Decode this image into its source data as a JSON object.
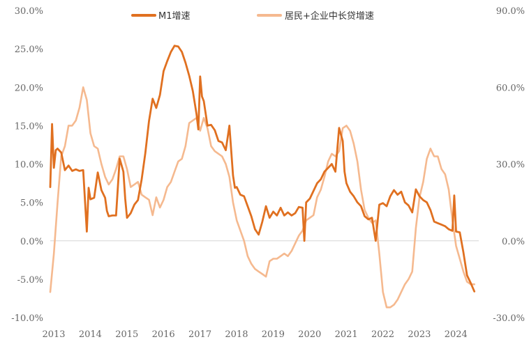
{
  "chart_data": {
    "type": "line",
    "title": "",
    "xlabel": "",
    "ylabel": "",
    "x_ticks": [
      "2013",
      "2014",
      "2015",
      "2016",
      "2017",
      "2018",
      "2019",
      "2020",
      "2021",
      "2022",
      "2023",
      "2024"
    ],
    "y_left": {
      "ticks": [
        "30.0%",
        "25.0%",
        "20.0%",
        "15.0%",
        "10.0%",
        "5.0%",
        "0.0%",
        "-5.0%",
        "-10.0%"
      ],
      "ylim": [
        -10,
        30
      ]
    },
    "y_right": {
      "ticks": [
        "90.0%",
        "60.0%",
        "30.0%",
        "0.0%",
        "-30.0%"
      ],
      "ylim": [
        -30,
        90
      ]
    },
    "zero_line": true,
    "legend_position": "top",
    "series": [
      {
        "name": "M1增速",
        "axis": "left",
        "color": "#E07020",
        "x": [
          2013.0,
          2013.05,
          2013.1,
          2013.15,
          2013.2,
          2013.3,
          2013.4,
          2013.5,
          2013.6,
          2013.7,
          2013.8,
          2013.9,
          2014.0,
          2014.05,
          2014.1,
          2014.15,
          2014.2,
          2014.3,
          2014.4,
          2014.5,
          2014.55,
          2014.6,
          2014.7,
          2014.8,
          2014.9,
          2015.0,
          2015.05,
          2015.1,
          2015.2,
          2015.3,
          2015.4,
          2015.5,
          2015.6,
          2015.7,
          2015.8,
          2015.9,
          2016.0,
          2016.1,
          2016.2,
          2016.3,
          2016.4,
          2016.5,
          2016.6,
          2016.7,
          2016.8,
          2016.9,
          2017.0,
          2017.05,
          2017.1,
          2017.15,
          2017.2,
          2017.3,
          2017.4,
          2017.5,
          2017.6,
          2017.7,
          2017.8,
          2017.9,
          2018.0,
          2018.05,
          2018.1,
          2018.2,
          2018.3,
          2018.4,
          2018.5,
          2018.6,
          2018.7,
          2018.8,
          2018.9,
          2019.0,
          2019.1,
          2019.2,
          2019.3,
          2019.4,
          2019.5,
          2019.6,
          2019.7,
          2019.8,
          2019.9,
          2019.95,
          2020.0,
          2020.1,
          2020.2,
          2020.3,
          2020.4,
          2020.5,
          2020.6,
          2020.7,
          2020.8,
          2020.9,
          2021.0,
          2021.05,
          2021.1,
          2021.2,
          2021.3,
          2021.4,
          2021.5,
          2021.6,
          2021.7,
          2021.8,
          2021.9,
          2022.0,
          2022.1,
          2022.2,
          2022.3,
          2022.4,
          2022.5,
          2022.6,
          2022.7,
          2022.8,
          2022.9,
          2023.0,
          2023.1,
          2023.2,
          2023.3,
          2023.4,
          2023.5,
          2023.6,
          2023.7,
          2023.8,
          2023.9,
          2024.0,
          2024.05,
          2024.1,
          2024.2,
          2024.3,
          2024.4,
          2024.5,
          2024.6
        ],
        "values": [
          7.0,
          15.2,
          9.5,
          11.8,
          12.0,
          11.5,
          9.2,
          9.8,
          9.1,
          9.3,
          9.1,
          9.2,
          1.2,
          6.9,
          5.4,
          5.5,
          5.6,
          8.9,
          6.6,
          5.6,
          3.9,
          3.2,
          3.3,
          3.3,
          10.7,
          9.0,
          5.5,
          3.0,
          3.6,
          4.7,
          5.3,
          8.0,
          11.4,
          15.6,
          18.5,
          17.3,
          19.0,
          22.1,
          23.4,
          24.6,
          25.4,
          25.3,
          24.6,
          23.2,
          21.5,
          19.5,
          16.5,
          14.5,
          21.4,
          18.8,
          18.2,
          15.0,
          15.1,
          14.4,
          13.0,
          12.8,
          11.8,
          15.0,
          8.5,
          6.9,
          7.0,
          6.0,
          5.8,
          4.5,
          3.2,
          1.5,
          0.8,
          2.5,
          4.5,
          3.0,
          3.8,
          3.3,
          4.3,
          3.3,
          3.7,
          3.3,
          3.6,
          4.4,
          4.3,
          0.0,
          5.0,
          5.5,
          6.5,
          7.5,
          8.0,
          9.0,
          9.5,
          10.0,
          9.0,
          14.7,
          13.0,
          9.0,
          7.5,
          6.4,
          5.8,
          5.0,
          4.5,
          3.2,
          2.8,
          3.0,
          0.0,
          4.7,
          4.9,
          4.5,
          5.8,
          6.6,
          6.0,
          6.4,
          5.0,
          4.6,
          3.7,
          6.7,
          5.8,
          5.3,
          5.0,
          4.0,
          2.5,
          2.3,
          2.1,
          1.9,
          1.5,
          1.3,
          5.9,
          1.2,
          1.1,
          -1.5,
          -4.5,
          -5.5,
          -6.6
        ]
      },
      {
        "name": "居民+企业中长贷增速",
        "axis": "right",
        "color": "#F5B98F",
        "x": [
          2013.0,
          2013.1,
          2013.2,
          2013.3,
          2013.4,
          2013.5,
          2013.6,
          2013.7,
          2013.8,
          2013.9,
          2014.0,
          2014.1,
          2014.2,
          2014.3,
          2014.4,
          2014.5,
          2014.6,
          2014.7,
          2014.8,
          2014.9,
          2015.0,
          2015.1,
          2015.2,
          2015.3,
          2015.4,
          2015.5,
          2015.6,
          2015.7,
          2015.8,
          2015.9,
          2016.0,
          2016.1,
          2016.2,
          2016.3,
          2016.4,
          2016.5,
          2016.6,
          2016.7,
          2016.8,
          2016.9,
          2017.0,
          2017.1,
          2017.2,
          2017.3,
          2017.4,
          2017.5,
          2017.6,
          2017.7,
          2017.8,
          2017.9,
          2018.0,
          2018.1,
          2018.2,
          2018.3,
          2018.4,
          2018.5,
          2018.6,
          2018.7,
          2018.8,
          2018.9,
          2019.0,
          2019.1,
          2019.2,
          2019.3,
          2019.4,
          2019.5,
          2019.6,
          2019.7,
          2019.8,
          2019.9,
          2020.0,
          2020.1,
          2020.2,
          2020.3,
          2020.4,
          2020.5,
          2020.6,
          2020.7,
          2020.8,
          2020.9,
          2021.0,
          2021.1,
          2021.2,
          2021.3,
          2021.4,
          2021.5,
          2021.6,
          2021.7,
          2021.8,
          2021.9,
          2022.0,
          2022.1,
          2022.2,
          2022.3,
          2022.4,
          2022.5,
          2022.6,
          2022.7,
          2022.8,
          2022.9,
          2023.0,
          2023.1,
          2023.2,
          2023.3,
          2023.4,
          2023.5,
          2023.6,
          2023.7,
          2023.8,
          2023.9,
          2024.0,
          2024.1,
          2024.2,
          2024.3,
          2024.4,
          2024.5,
          2024.6
        ],
        "values": [
          -20.0,
          -5.0,
          15.0,
          33.0,
          37.0,
          45.0,
          45.0,
          47.0,
          52.0,
          60.0,
          55.0,
          42.0,
          37.0,
          36.0,
          30.0,
          25.0,
          22.0,
          24.0,
          28.0,
          33.0,
          33.0,
          28.0,
          21.0,
          22.0,
          23.0,
          18.0,
          17.0,
          16.0,
          10.0,
          17.0,
          13.0,
          16.0,
          21.0,
          23.0,
          27.0,
          31.0,
          32.0,
          37.0,
          46.0,
          47.0,
          48.0,
          43.0,
          48.0,
          44.0,
          37.0,
          35.0,
          34.0,
          33.0,
          30.0,
          25.0,
          15.0,
          8.0,
          4.0,
          0.0,
          -6.0,
          -9.0,
          -11.0,
          -12.0,
          -13.0,
          -14.0,
          -8.0,
          -7.0,
          -7.0,
          -6.0,
          -5.0,
          -6.0,
          -4.0,
          -1.0,
          2.0,
          4.0,
          8.0,
          9.0,
          10.0,
          17.0,
          20.0,
          25.0,
          31.0,
          34.0,
          33.0,
          35.0,
          44.0,
          45.0,
          43.0,
          38.0,
          31.0,
          20.0,
          12.0,
          9.0,
          7.0,
          8.0,
          -5.0,
          -20.0,
          -26.0,
          -26.0,
          -25.0,
          -23.0,
          -20.0,
          -17.0,
          -15.0,
          -12.0,
          5.0,
          17.0,
          23.0,
          32.0,
          36.0,
          33.0,
          33.0,
          28.0,
          26.0,
          20.0,
          8.0,
          -2.0,
          -7.0,
          -12.0,
          -16.0,
          -17.0,
          -17.0
        ]
      }
    ]
  }
}
